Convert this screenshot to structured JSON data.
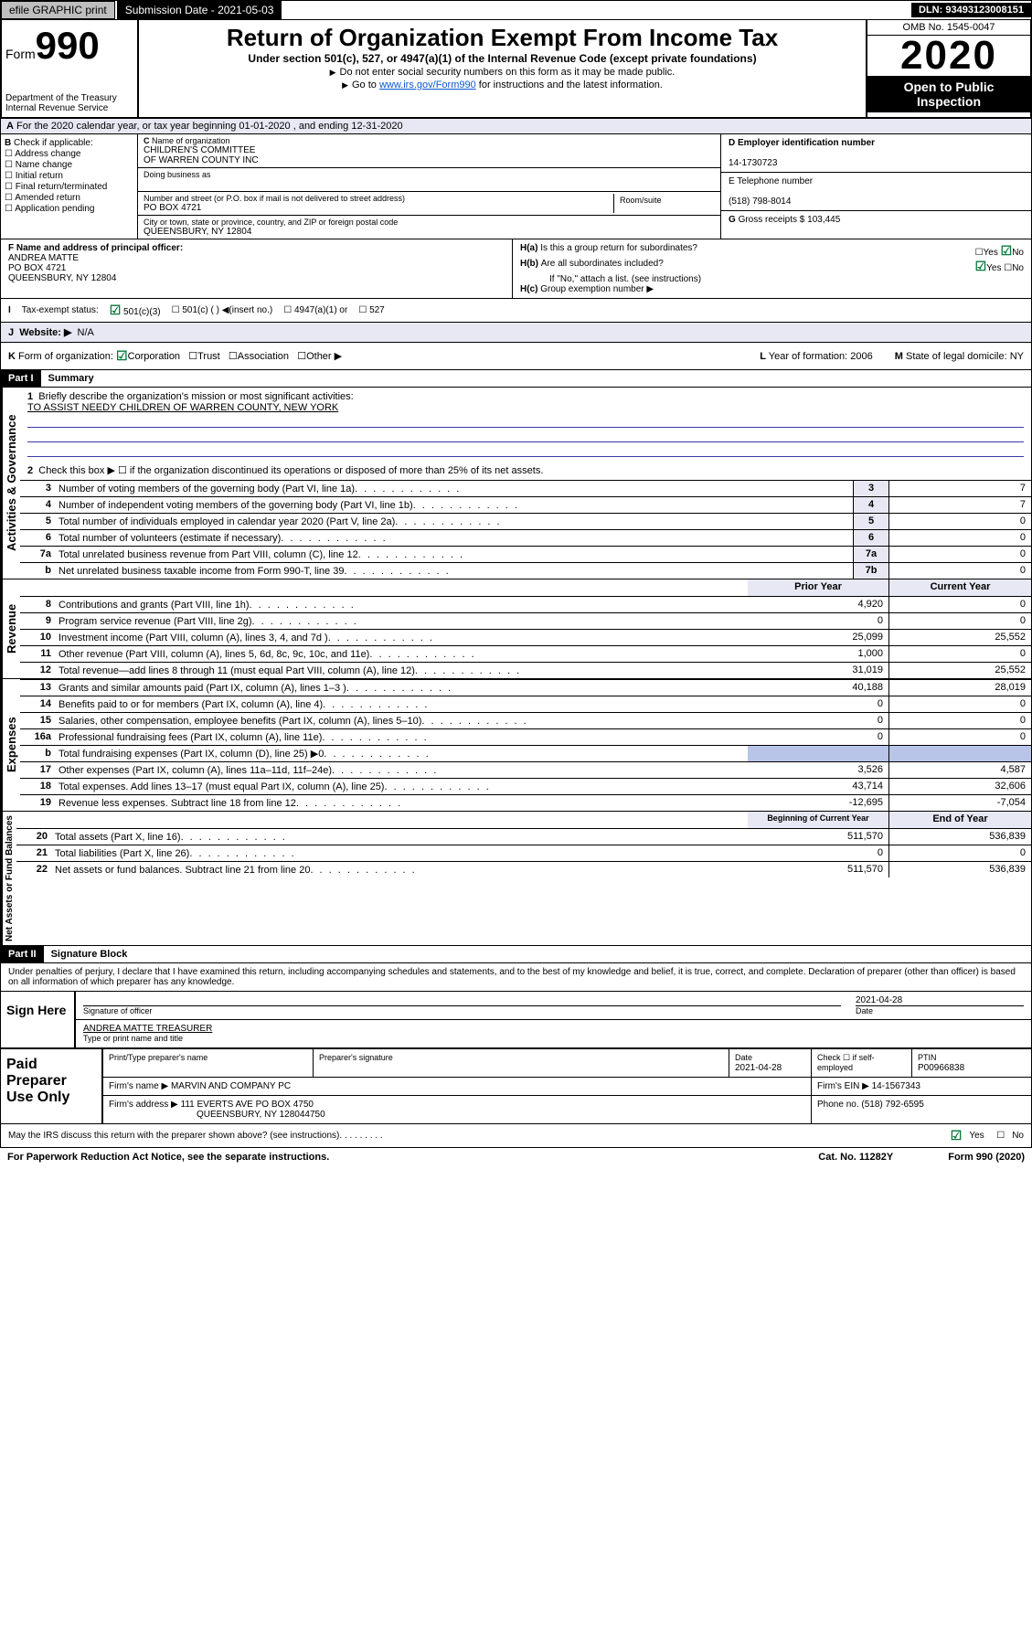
{
  "topbar": {
    "efile": "efile GRAPHIC print",
    "sub_label": "Submission Date - 2021-05-03",
    "dln": "DLN: 93493123008151"
  },
  "head": {
    "form_label": "Form",
    "form_no": "990",
    "dept": "Department of the Treasury\nInternal Revenue Service",
    "title": "Return of Organization Exempt From Income Tax",
    "subtitle": "Under section 501(c), 527, or 4947(a)(1) of the Internal Revenue Code (except private foundations)",
    "note1": "Do not enter social security numbers on this form as it may be made public.",
    "note2_pre": "Go to ",
    "note2_link": "www.irs.gov/Form990",
    "note2_post": " for instructions and the latest information.",
    "omb": "OMB No. 1545-0047",
    "year": "2020",
    "open": "Open to Public Inspection"
  },
  "lineA": "For the 2020 calendar year, or tax year beginning 01-01-2020   , and ending 12-31-2020",
  "B": {
    "label": "Check if applicable:",
    "items": [
      "Address change",
      "Name change",
      "Initial return",
      "Final return/terminated",
      "Amended return",
      "Application pending"
    ]
  },
  "C": {
    "name_l": "Name of organization",
    "name": "CHILDREN'S COMMITTEE\nOF WARREN COUNTY INC",
    "dba_l": "Doing business as",
    "dba": "",
    "addr_l": "Number and street (or P.O. box if mail is not delivered to street address)",
    "room_l": "Room/suite",
    "addr": "PO BOX 4721",
    "city_l": "City or town, state or province, country, and ZIP or foreign postal code",
    "city": "QUEENSBURY, NY  12804"
  },
  "D": {
    "label": "D Employer identification number",
    "val": "14-1730723"
  },
  "E": {
    "label": "E Telephone number",
    "val": "(518) 798-8014"
  },
  "G": {
    "label": "G",
    "txt": "Gross receipts $ 103,445"
  },
  "F": {
    "label": "F  Name and address of principal officer:",
    "name": "ANDREA MATTE",
    "addr": "PO BOX 4721",
    "city": "QUEENSBURY, NY  12804"
  },
  "H": {
    "a": "Is this a group return for subordinates?",
    "b": "Are all subordinates included?",
    "b2": "If \"No,\" attach a list. (see instructions)",
    "c": "Group exemption number ▶"
  },
  "taxrow": {
    "label": "Tax-exempt status:",
    "o1": "501(c)(3)",
    "o2": "501(c) (  ) ◀(insert no.)",
    "o3": "4947(a)(1) or",
    "o4": "527"
  },
  "J": {
    "label": "Website: ▶",
    "val": "N/A"
  },
  "K": {
    "label": "Form of organization:",
    "o1": "Corporation",
    "o2": "Trust",
    "o3": "Association",
    "o4": "Other ▶"
  },
  "L": {
    "label": "Year of formation: 2006"
  },
  "M": {
    "label": "State of legal domicile: NY"
  },
  "partI": {
    "hdr": "Part I",
    "title": "Summary"
  },
  "sec_gov": {
    "vlabel": "Activities & Governance",
    "l1a": "Briefly describe the organization's mission or most significant activities:",
    "l1b": "TO ASSIST NEEDY CHILDREN OF WARREN COUNTY, NEW YORK",
    "l2": "Check this box ▶ ☐ if the organization discontinued its operations or disposed of more than 25% of its net assets.",
    "rows": [
      {
        "n": "3",
        "d": "Number of voting members of the governing body (Part VI, line 1a)",
        "rn": "3",
        "v": "7"
      },
      {
        "n": "4",
        "d": "Number of independent voting members of the governing body (Part VI, line 1b)",
        "rn": "4",
        "v": "7"
      },
      {
        "n": "5",
        "d": "Total number of individuals employed in calendar year 2020 (Part V, line 2a)",
        "rn": "5",
        "v": "0"
      },
      {
        "n": "6",
        "d": "Total number of volunteers (estimate if necessary)",
        "rn": "6",
        "v": "0"
      },
      {
        "n": "7a",
        "d": "Total unrelated business revenue from Part VIII, column (C), line 12",
        "rn": "7a",
        "v": "0"
      },
      {
        "n": "b",
        "d": "Net unrelated business taxable income from Form 990-T, line 39",
        "rn": "7b",
        "v": "0"
      }
    ]
  },
  "col_hdr": {
    "prior": "Prior Year",
    "current": "Current Year"
  },
  "sec_rev": {
    "vlabel": "Revenue",
    "rows": [
      {
        "n": "8",
        "d": "Contributions and grants (Part VIII, line 1h)",
        "p": "4,920",
        "c": "0"
      },
      {
        "n": "9",
        "d": "Program service revenue (Part VIII, line 2g)",
        "p": "0",
        "c": "0"
      },
      {
        "n": "10",
        "d": "Investment income (Part VIII, column (A), lines 3, 4, and 7d )",
        "p": "25,099",
        "c": "25,552"
      },
      {
        "n": "11",
        "d": "Other revenue (Part VIII, column (A), lines 5, 6d, 8c, 9c, 10c, and 11e)",
        "p": "1,000",
        "c": "0"
      },
      {
        "n": "12",
        "d": "Total revenue—add lines 8 through 11 (must equal Part VIII, column (A), line 12)",
        "p": "31,019",
        "c": "25,552"
      }
    ]
  },
  "sec_exp": {
    "vlabel": "Expenses",
    "rows": [
      {
        "n": "13",
        "d": "Grants and similar amounts paid (Part IX, column (A), lines 1–3 )",
        "p": "40,188",
        "c": "28,019"
      },
      {
        "n": "14",
        "d": "Benefits paid to or for members (Part IX, column (A), line 4)",
        "p": "0",
        "c": "0"
      },
      {
        "n": "15",
        "d": "Salaries, other compensation, employee benefits (Part IX, column (A), lines 5–10)",
        "p": "0",
        "c": "0"
      },
      {
        "n": "16a",
        "d": "Professional fundraising fees (Part IX, column (A), line 11e)",
        "p": "0",
        "c": "0"
      },
      {
        "n": "b",
        "d": "Total fundraising expenses (Part IX, column (D), line 25) ▶0",
        "p": "",
        "c": "",
        "shaded": true
      },
      {
        "n": "17",
        "d": "Other expenses (Part IX, column (A), lines 11a–11d, 11f–24e)",
        "p": "3,526",
        "c": "4,587"
      },
      {
        "n": "18",
        "d": "Total expenses. Add lines 13–17 (must equal Part IX, column (A), line 25)",
        "p": "43,714",
        "c": "32,606"
      },
      {
        "n": "19",
        "d": "Revenue less expenses. Subtract line 18 from line 12",
        "p": "-12,695",
        "c": "-7,054"
      }
    ]
  },
  "col_hdr2": {
    "prior": "Beginning of Current Year",
    "current": "End of Year"
  },
  "sec_net": {
    "vlabel": "Net Assets or Fund Balances",
    "rows": [
      {
        "n": "20",
        "d": "Total assets (Part X, line 16)",
        "p": "511,570",
        "c": "536,839"
      },
      {
        "n": "21",
        "d": "Total liabilities (Part X, line 26)",
        "p": "0",
        "c": "0"
      },
      {
        "n": "22",
        "d": "Net assets or fund balances. Subtract line 21 from line 20",
        "p": "511,570",
        "c": "536,839"
      }
    ]
  },
  "partII": {
    "hdr": "Part II",
    "title": "Signature Block"
  },
  "sig": {
    "penalty": "Under penalties of perjury, I declare that I have examined this return, including accompanying schedules and statements, and to the best of my knowledge and belief, it is true, correct, and complete. Declaration of preparer (other than officer) is based on all information of which preparer has any knowledge.",
    "sign_here": "Sign Here",
    "sig_officer": "Signature of officer",
    "date": "2021-04-28",
    "date_l": "Date",
    "name": "ANDREA MATTE TREASURER",
    "name_l": "Type or print name and title"
  },
  "paid": {
    "label": "Paid Preparer Use Only",
    "h1": "Print/Type preparer's name",
    "h2": "Preparer's signature",
    "h3": "Date",
    "h3v": "2021-04-28",
    "h4": "Check ☐ if self-employed",
    "h5": "PTIN",
    "h5v": "P00966838",
    "firm_l": "Firm's name    ▶",
    "firm": "MARVIN AND COMPANY PC",
    "ein_l": "Firm's EIN ▶",
    "ein": "14-1567343",
    "addr_l": "Firm's address ▶",
    "addr": "111 EVERTS AVE PO BOX 4750",
    "addr2": "QUEENSBURY, NY  128044750",
    "phone_l": "Phone no.",
    "phone": "(518) 792-6595"
  },
  "footer": {
    "q": "May the IRS discuss this return with the preparer shown above? (see instructions)",
    "yes": "Yes",
    "no": "No"
  },
  "last": {
    "l": "For Paperwork Reduction Act Notice, see the separate instructions.",
    "m": "Cat. No. 11282Y",
    "r": "Form 990 (2020)"
  }
}
